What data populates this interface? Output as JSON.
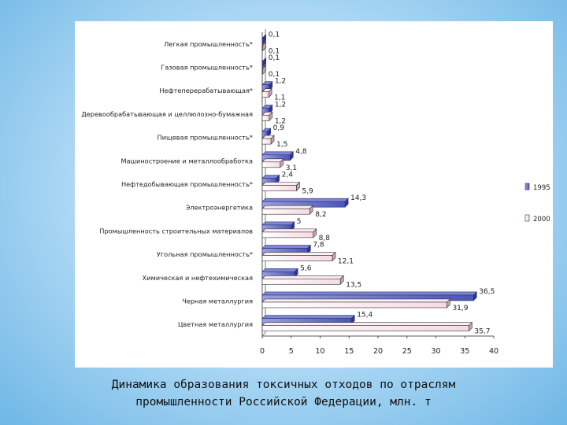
{
  "caption": {
    "line1": "Динамика  образования  токсичных  отходов  по отраслям",
    "line2": "промышленности Российской Федерации, млн. т"
  },
  "colors": {
    "series1995": "#4b55b8",
    "series2000": "#f7d9e4",
    "axis": "#555555"
  },
  "chart_data": {
    "type": "bar",
    "orientation": "horizontal",
    "title": "",
    "xlabel": "",
    "ylabel": "",
    "xlim": [
      0,
      40
    ],
    "xticks": [
      "0",
      "5",
      "10",
      "15",
      "20",
      "25",
      "30",
      "35",
      "40"
    ],
    "legend_position": "right",
    "categories": [
      "Легкая промышленность*",
      "Газовая промышленность*",
      "Нефтеперерабатывающая*",
      "Деревообрабатывающая и целлюлозно-бумажная",
      "Пищевая промышленность*",
      "Машиностроение и металлообработка",
      "Нефтедобывающая промышленность*",
      "Электроэнергетика",
      "Промышленность строительных материалов",
      "Угольная промышленность*",
      "Химическая и нефтехимическая",
      "Черная металлургия",
      "Цветная металлургия"
    ],
    "series": [
      {
        "name": "1995",
        "values": [
          0.1,
          0.1,
          1.2,
          1.2,
          0.9,
          4.8,
          2.4,
          14.3,
          5,
          7.8,
          5.6,
          36.5,
          15.4
        ],
        "labels": [
          "0,1",
          "0,1",
          "1,2",
          "1,2",
          "0,9",
          "4,8",
          "2,4",
          "14,3",
          "5",
          "7,8",
          "5,6",
          "36,5",
          "15,4"
        ]
      },
      {
        "name": "2000",
        "values": [
          0.1,
          0.1,
          1.1,
          1.2,
          1.5,
          3.1,
          5.9,
          8.2,
          8.8,
          12.1,
          13.5,
          31.9,
          35.7
        ],
        "labels": [
          "0,1",
          "0,1",
          "1,1",
          "1,2",
          "1,5",
          "3,1",
          "5,9",
          "8,2",
          "8,8",
          "12,1",
          "13,5",
          "31,9",
          "35,7"
        ]
      }
    ]
  }
}
